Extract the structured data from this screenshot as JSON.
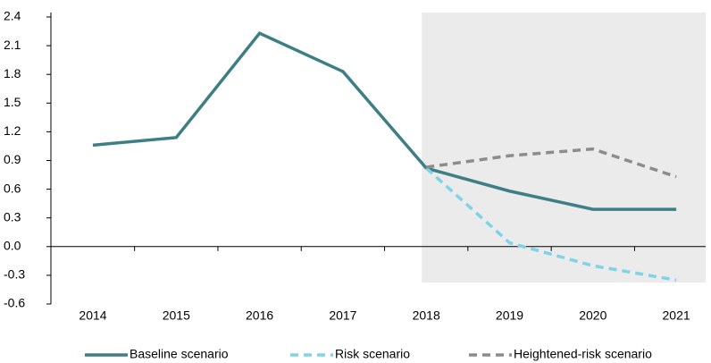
{
  "chart_data": {
    "type": "line",
    "categories": [
      "2014",
      "2015",
      "2016",
      "2017",
      "2018",
      "2019",
      "2020",
      "2021"
    ],
    "series": [
      {
        "name": "Baseline scenario",
        "color": "#3e7f86",
        "dash": "solid",
        "values": [
          1.06,
          1.14,
          2.23,
          1.83,
          0.82,
          0.58,
          0.39,
          0.39
        ]
      },
      {
        "name": "Risk scenario",
        "color": "#7fd3e8",
        "dash": "dashed",
        "values": [
          null,
          null,
          null,
          null,
          0.82,
          0.04,
          -0.2,
          -0.35
        ]
      },
      {
        "name": "Heightened-risk scenario",
        "color": "#8c8c8c",
        "dash": "dashed",
        "values": [
          null,
          null,
          null,
          null,
          0.83,
          0.95,
          1.02,
          0.73
        ]
      }
    ],
    "ylim": [
      -0.6,
      2.4
    ],
    "yticks": [
      -0.6,
      -0.3,
      {
        "value": 0,
        "label": "0.0"
      },
      0.3,
      0.6,
      0.9,
      1.2,
      1.5,
      1.8,
      2.1,
      2.4
    ],
    "shaded_from": "2018",
    "grid": false,
    "legend": "bottom"
  }
}
